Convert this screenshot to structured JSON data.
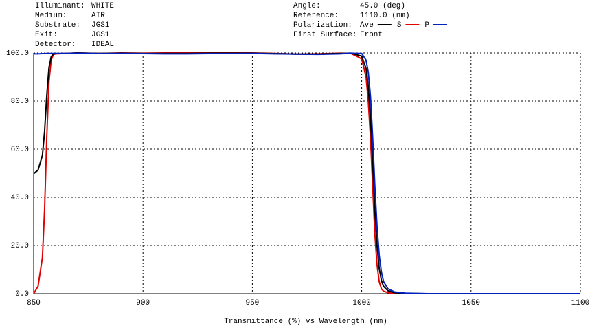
{
  "chart_data": {
    "type": "line",
    "info_left": [
      {
        "label": "Illuminant:",
        "value": "WHITE"
      },
      {
        "label": "Medium:",
        "value": "AIR"
      },
      {
        "label": "Substrate:",
        "value": "JGS1"
      },
      {
        "label": "Exit:",
        "value": "JGS1"
      },
      {
        "label": "Detector:",
        "value": "IDEAL"
      }
    ],
    "info_right": [
      {
        "label": "Angle:",
        "value": "45.0 (deg)"
      },
      {
        "label": "Reference:",
        "value": "1110.0 (nm)"
      },
      {
        "label": "Polarization:"
      },
      {
        "label": "First Surface:",
        "value": "Front"
      }
    ],
    "x_label": "Transmittance (%)  vs  Wavelength (nm)",
    "x": [
      850,
      852,
      854,
      855,
      856,
      857,
      858,
      859,
      860,
      865,
      870,
      880,
      890,
      900,
      910,
      920,
      930,
      940,
      950,
      960,
      970,
      980,
      990,
      995,
      998,
      1000,
      1002,
      1003,
      1004,
      1005,
      1006,
      1007,
      1008,
      1009,
      1010,
      1012,
      1015,
      1020,
      1030,
      1050,
      1100
    ],
    "series": [
      {
        "name": "Ave",
        "color": "#000000",
        "values": [
          49.8,
          51.3,
          57.4,
          67.4,
          82.4,
          93.9,
          98.4,
          99.6,
          99.7,
          99.8,
          100,
          99.8,
          99.9,
          99.8,
          99.8,
          99.8,
          99.9,
          99.9,
          99.9,
          99.7,
          99.5,
          99.5,
          99.8,
          99.9,
          99.2,
          98.7,
          93.5,
          86,
          73.5,
          55,
          35,
          20,
          10.5,
          5.5,
          3,
          1.2,
          0.4,
          0.1,
          0,
          0,
          0
        ]
      },
      {
        "name": "S",
        "color": "#e00000",
        "values": [
          0,
          3,
          15,
          35,
          65,
          88,
          97,
          99.3,
          99.6,
          99.8,
          100,
          99.8,
          100,
          99.9,
          100,
          100,
          100,
          100,
          100,
          99.8,
          99.5,
          99.6,
          99.9,
          99.8,
          98.5,
          97.5,
          90,
          80,
          65,
          45,
          25,
          12,
          5,
          2,
          1,
          0.4,
          0.1,
          0,
          0,
          0,
          0
        ]
      },
      {
        "name": "P",
        "color": "#0020c0",
        "values": [
          99.6,
          99.6,
          99.7,
          99.7,
          99.8,
          99.8,
          99.8,
          99.8,
          99.8,
          99.8,
          99.9,
          99.7,
          99.8,
          99.7,
          99.6,
          99.6,
          99.7,
          99.7,
          99.8,
          99.6,
          99.5,
          99.4,
          99.6,
          99.9,
          99.8,
          99.8,
          97,
          92,
          82,
          65,
          45,
          28,
          16,
          9,
          5,
          2,
          0.7,
          0.2,
          0,
          0,
          0
        ]
      }
    ],
    "xlim": [
      850,
      1100
    ],
    "xticks": [
      850,
      900,
      950,
      1000,
      1050,
      1100
    ],
    "ylim": [
      0,
      100
    ],
    "yticks": [
      {
        "value": 0,
        "label": "0.0"
      },
      {
        "value": 20,
        "label": "20.0"
      },
      {
        "value": 40,
        "label": "40.0"
      },
      {
        "value": 60,
        "label": "60.0"
      },
      {
        "value": 80,
        "label": "80.0"
      },
      {
        "value": 100,
        "label": "100.0"
      }
    ],
    "grid": true
  }
}
